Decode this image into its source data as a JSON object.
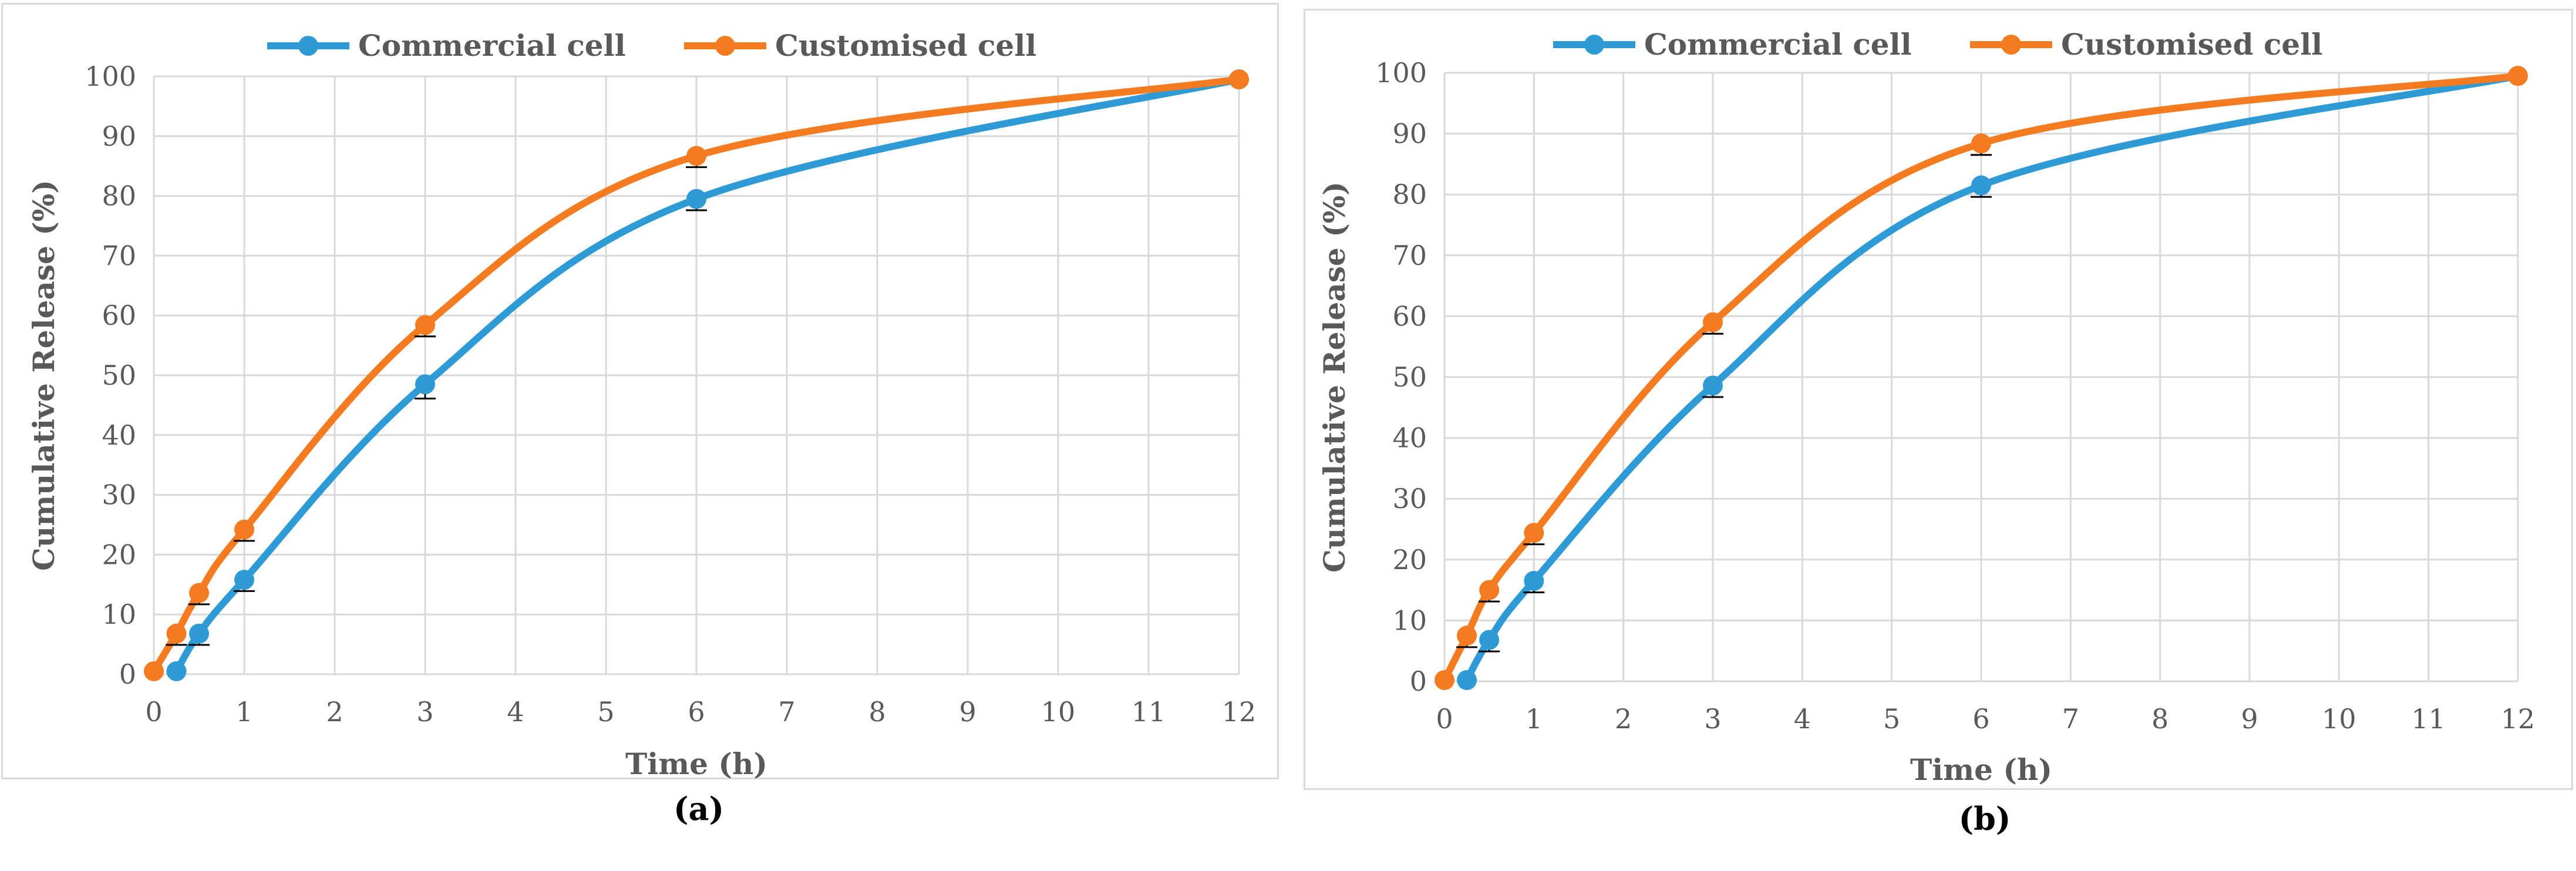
{
  "chart_data": [
    {
      "type": "line",
      "panel_label": "(a)",
      "xlabel": "Time (h)",
      "ylabel": "Cumulative Release (%)",
      "xlim": [
        0,
        12
      ],
      "ylim": [
        0,
        100
      ],
      "xticks": [
        0,
        1,
        2,
        3,
        4,
        5,
        6,
        7,
        8,
        9,
        10,
        11,
        12
      ],
      "yticks": [
        0,
        10,
        20,
        30,
        40,
        50,
        60,
        70,
        80,
        90,
        100
      ],
      "grid": true,
      "legend_position": "top",
      "series": [
        {
          "name": "Commercial cell",
          "color": "#2e9bd6",
          "x": [
            0.25,
            0.5,
            1,
            3,
            6,
            12
          ],
          "y": [
            0.5,
            6.8,
            15.8,
            48.5,
            79.5,
            99.5
          ],
          "err": [
            0,
            1.5,
            1.5,
            2,
            1.5,
            0
          ]
        },
        {
          "name": "Customised cell",
          "color": "#f47b20",
          "x": [
            0,
            0.25,
            0.5,
            1,
            3,
            6,
            12
          ],
          "y": [
            0.5,
            6.8,
            13.6,
            24.2,
            58.4,
            86.7,
            99.5
          ],
          "err": [
            0,
            1.5,
            1.5,
            1.5,
            1.5,
            1.5,
            0
          ]
        }
      ]
    },
    {
      "type": "line",
      "panel_label": "(b)",
      "xlabel": "Time (h)",
      "ylabel": "Cumulative Release (%)",
      "xlim": [
        0,
        12
      ],
      "ylim": [
        0,
        100
      ],
      "xticks": [
        0,
        1,
        2,
        3,
        4,
        5,
        6,
        7,
        8,
        9,
        10,
        11,
        12
      ],
      "yticks": [
        0,
        10,
        20,
        30,
        40,
        50,
        60,
        70,
        80,
        90,
        100
      ],
      "grid": true,
      "legend_position": "top",
      "series": [
        {
          "name": "Commercial cell",
          "color": "#2e9bd6",
          "x": [
            0.25,
            0.5,
            1,
            3,
            6,
            12
          ],
          "y": [
            0.2,
            6.8,
            16.5,
            48.6,
            81.5,
            99.5
          ],
          "err": [
            0,
            1.5,
            1.5,
            1.5,
            1.5,
            0
          ]
        },
        {
          "name": "Customised cell",
          "color": "#f47b20",
          "x": [
            0,
            0.25,
            0.5,
            1,
            3,
            6,
            12
          ],
          "y": [
            0.2,
            7.5,
            15.0,
            24.4,
            59.0,
            88.4,
            99.5
          ],
          "err": [
            0,
            1.5,
            1.5,
            1.5,
            1.5,
            1.5,
            0
          ]
        }
      ]
    }
  ]
}
